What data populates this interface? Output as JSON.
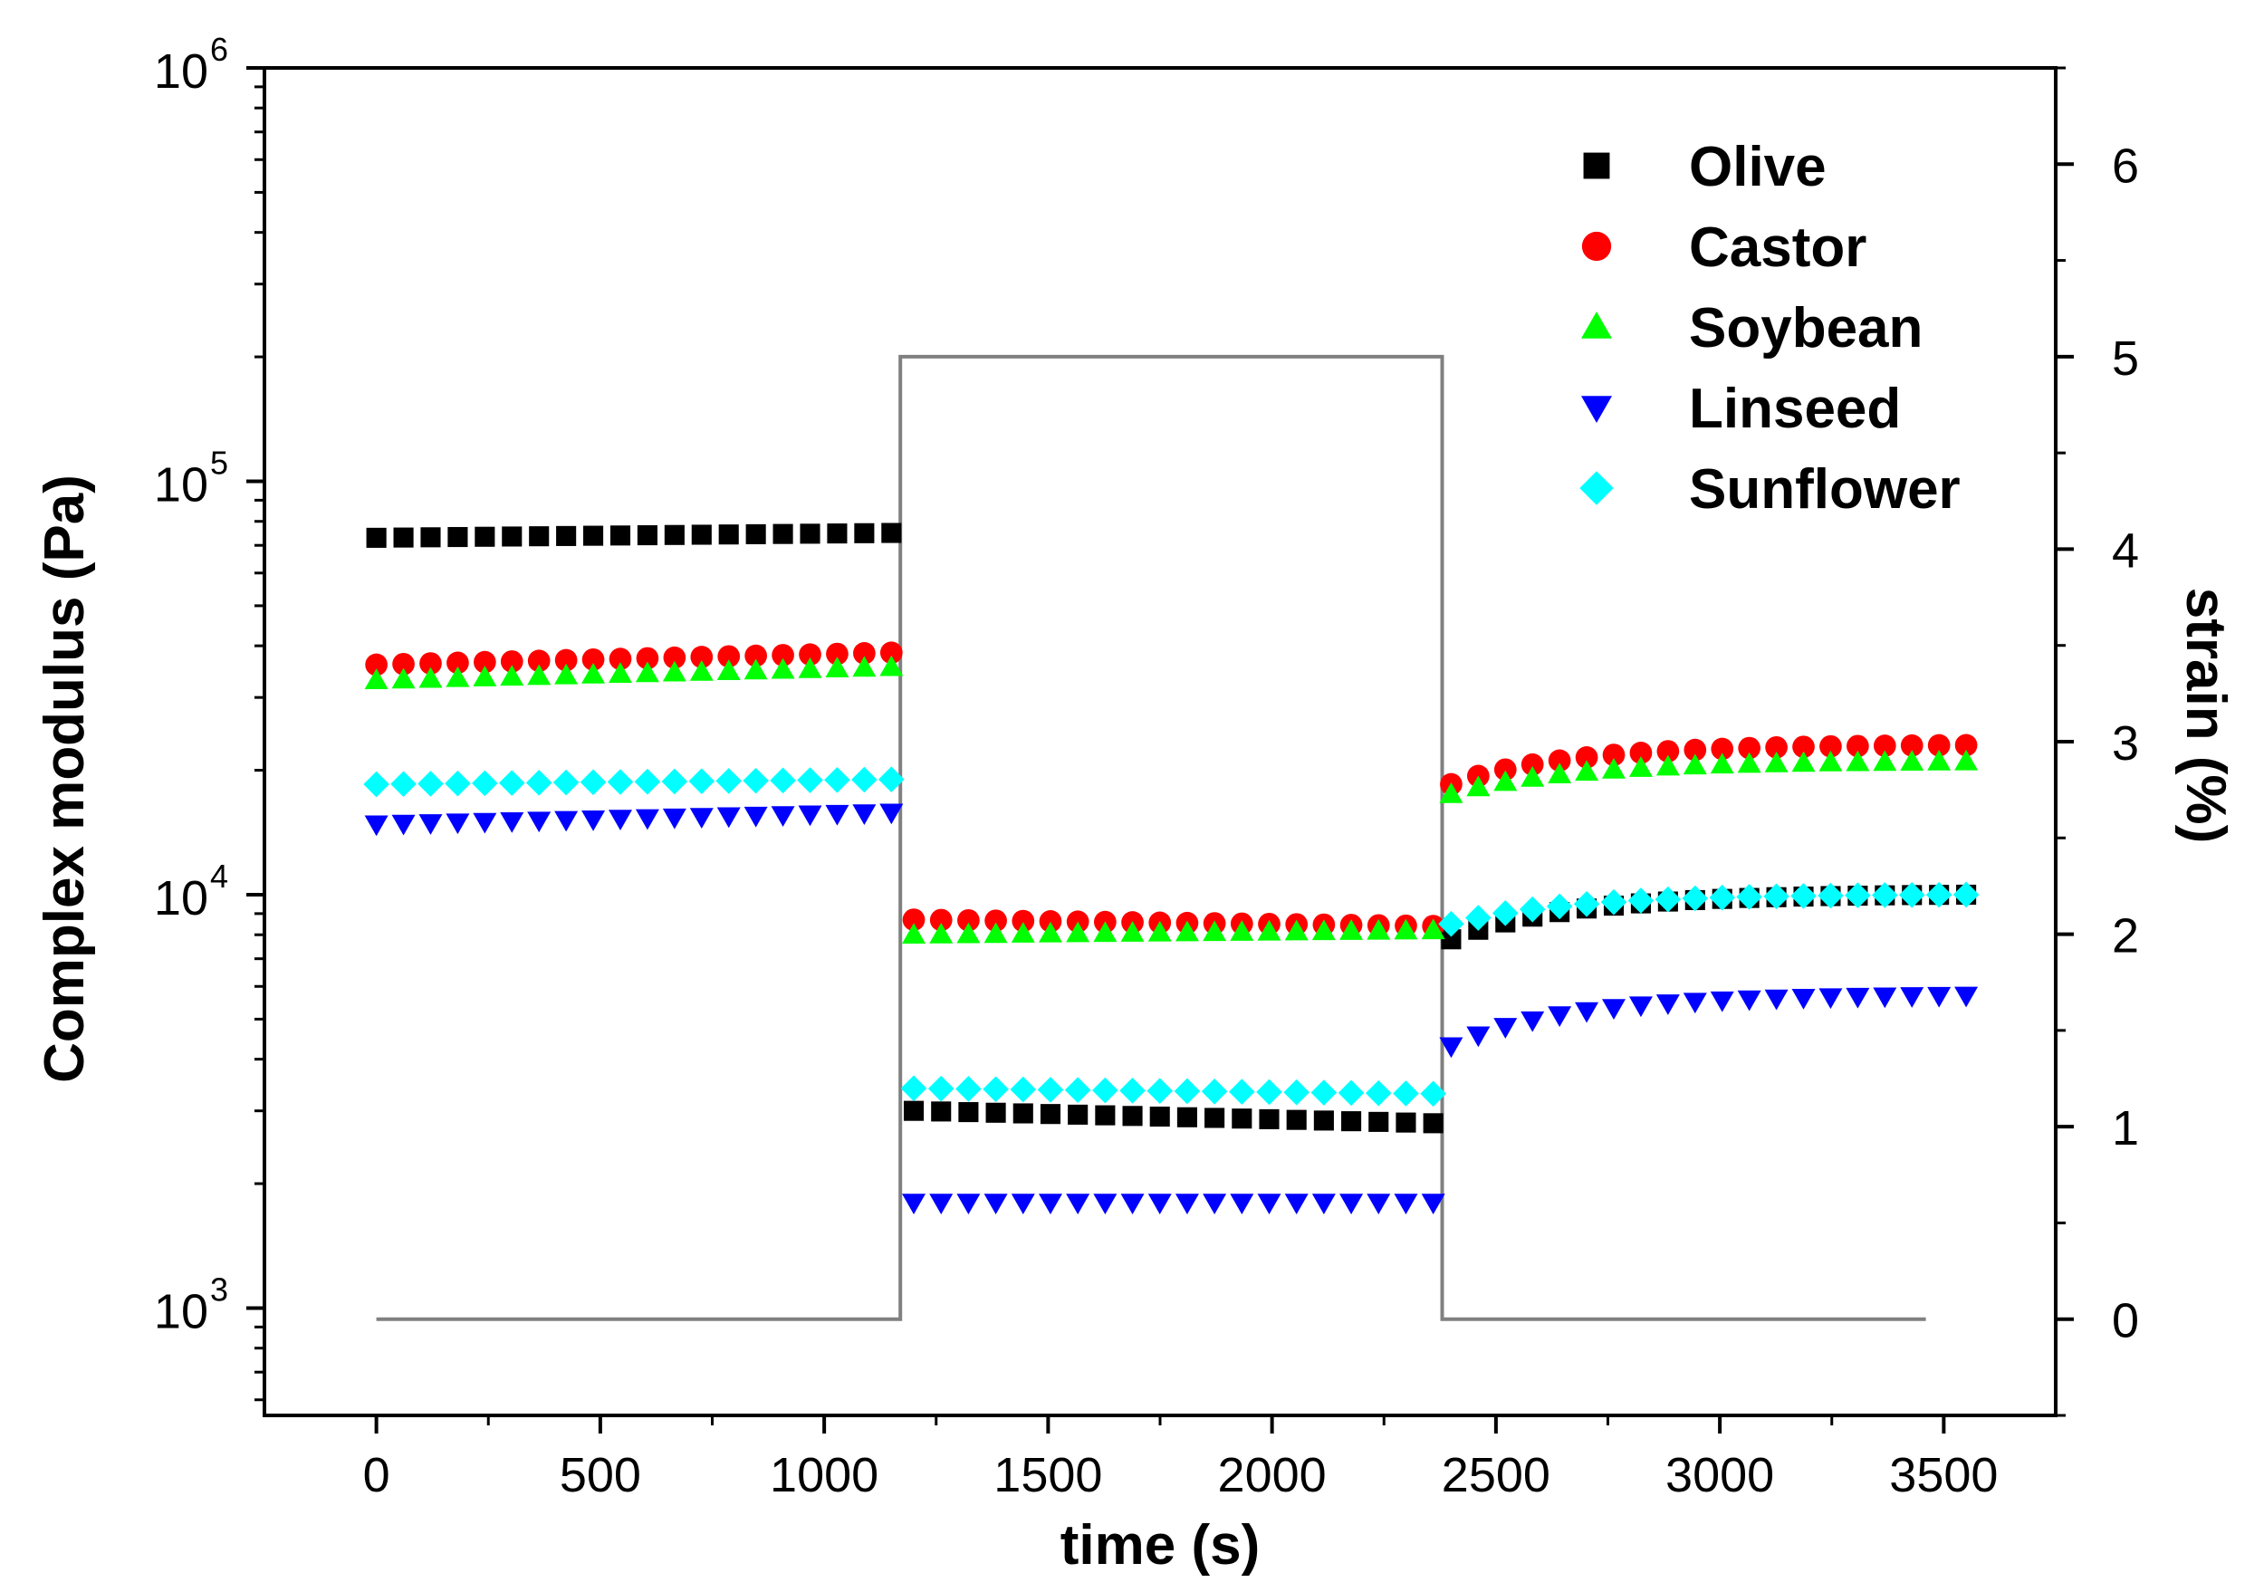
{
  "chart_data": {
    "type": "scatter",
    "title": "",
    "xlabel": "time (s)",
    "ylabel": "Complex modulus (Pa)",
    "y2label": "strain (%)",
    "xlim": [
      -250,
      3750
    ],
    "ylim": [
      550,
      1000000
    ],
    "yscale": "log",
    "y2lim": [
      -0.5,
      6.5
    ],
    "x_ticks": [
      "0",
      "500",
      "1000",
      "1500",
      "2000",
      "2500",
      "3000",
      "3500"
    ],
    "y_ticks": [
      {
        "base": "10",
        "exp": "3",
        "value": 1000
      },
      {
        "base": "10",
        "exp": "4",
        "value": 10000
      },
      {
        "base": "10",
        "exp": "5",
        "value": 100000
      },
      {
        "base": "10",
        "exp": "6",
        "value": 1000000
      }
    ],
    "y2_ticks": [
      "0",
      "1",
      "2",
      "3",
      "4",
      "5",
      "6"
    ],
    "grid": false,
    "legend_position": "top-right",
    "strain_line": {
      "color": "#808080",
      "x": [
        0,
        1170,
        1170,
        2380,
        2380,
        3460
      ],
      "y": [
        0,
        0,
        5,
        5,
        0,
        0
      ]
    },
    "series": [
      {
        "name": "Olive",
        "marker": "square",
        "color": "#000000",
        "segments": [
          {
            "x_start": 0,
            "x_end": 1150,
            "y_start": 73000,
            "y_end": 75000
          },
          {
            "x_start": 1200,
            "x_end": 2360,
            "y_start": 3000,
            "y_end": 2800
          },
          {
            "x_start": 2400,
            "x_end": 3550,
            "y_start": 7800,
            "y_end": 10000
          }
        ]
      },
      {
        "name": "Castor",
        "marker": "circle",
        "color": "#ff0000",
        "segments": [
          {
            "x_start": 0,
            "x_end": 1150,
            "y_start": 36000,
            "y_end": 38500
          },
          {
            "x_start": 1200,
            "x_end": 2360,
            "y_start": 8700,
            "y_end": 8400
          },
          {
            "x_start": 2400,
            "x_end": 3550,
            "y_start": 18500,
            "y_end": 23000
          }
        ]
      },
      {
        "name": "Soybean",
        "marker": "triangle-up",
        "color": "#00ff00",
        "segments": [
          {
            "x_start": 0,
            "x_end": 1150,
            "y_start": 33000,
            "y_end": 35500
          },
          {
            "x_start": 1200,
            "x_end": 2360,
            "y_start": 8000,
            "y_end": 8200
          },
          {
            "x_start": 2400,
            "x_end": 3550,
            "y_start": 17500,
            "y_end": 21000
          }
        ]
      },
      {
        "name": "Linseed",
        "marker": "triangle-down",
        "color": "#0000ff",
        "segments": [
          {
            "x_start": 0,
            "x_end": 1150,
            "y_start": 14800,
            "y_end": 15800
          },
          {
            "x_start": 1200,
            "x_end": 2360,
            "y_start": 1800,
            "y_end": 1800
          },
          {
            "x_start": 2400,
            "x_end": 3550,
            "y_start": 4300,
            "y_end": 5700
          }
        ]
      },
      {
        "name": "Sunflower",
        "marker": "diamond",
        "color": "#00ffff",
        "segments": [
          {
            "x_start": 0,
            "x_end": 1150,
            "y_start": 18500,
            "y_end": 19000
          },
          {
            "x_start": 1200,
            "x_end": 2360,
            "y_start": 3400,
            "y_end": 3300
          },
          {
            "x_start": 2400,
            "x_end": 3550,
            "y_start": 8500,
            "y_end": 10000
          }
        ]
      }
    ]
  }
}
